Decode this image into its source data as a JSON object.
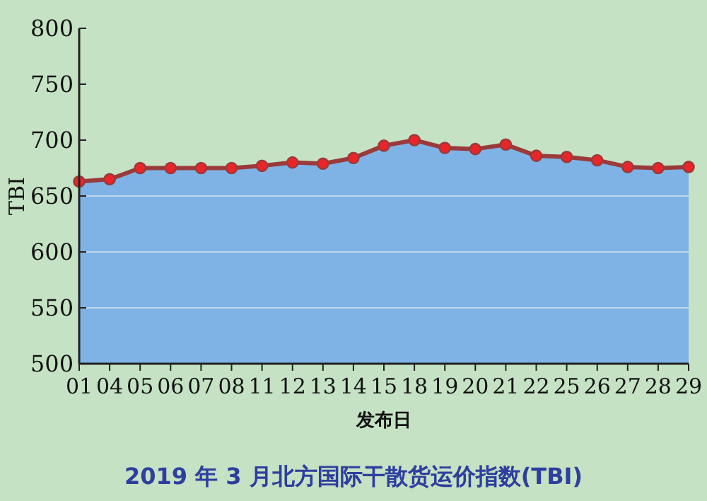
{
  "chart_data": {
    "type": "area",
    "title": "2019 年 3 月北方国际干散货运价指数(TBI)",
    "xlabel": "发布日",
    "ylabel": "TBI",
    "categories": [
      "01",
      "04",
      "05",
      "06",
      "07",
      "08",
      "11",
      "12",
      "13",
      "14",
      "15",
      "18",
      "19",
      "20",
      "21",
      "22",
      "25",
      "26",
      "27",
      "28",
      "29"
    ],
    "series": [
      {
        "color": "#7fb3e6",
        "values": [
          663,
          665,
          675,
          675,
          675,
          675,
          677,
          680,
          679,
          684,
          695,
          700,
          693,
          692,
          696,
          686,
          685,
          682,
          676,
          675,
          676
        ]
      },
      {
        "type": "line",
        "marker": "circle",
        "color": "#9b3a3a",
        "values": [
          663,
          665,
          675,
          675,
          675,
          675,
          677,
          680,
          679,
          684,
          695,
          700,
          693,
          692,
          696,
          686,
          685,
          682,
          676,
          675,
          676
        ]
      }
    ],
    "ylim": [
      500,
      800
    ],
    "yticks": [
      500,
      550,
      600,
      650,
      700,
      750,
      800
    ],
    "grid": "y",
    "line_style": "solid"
  }
}
